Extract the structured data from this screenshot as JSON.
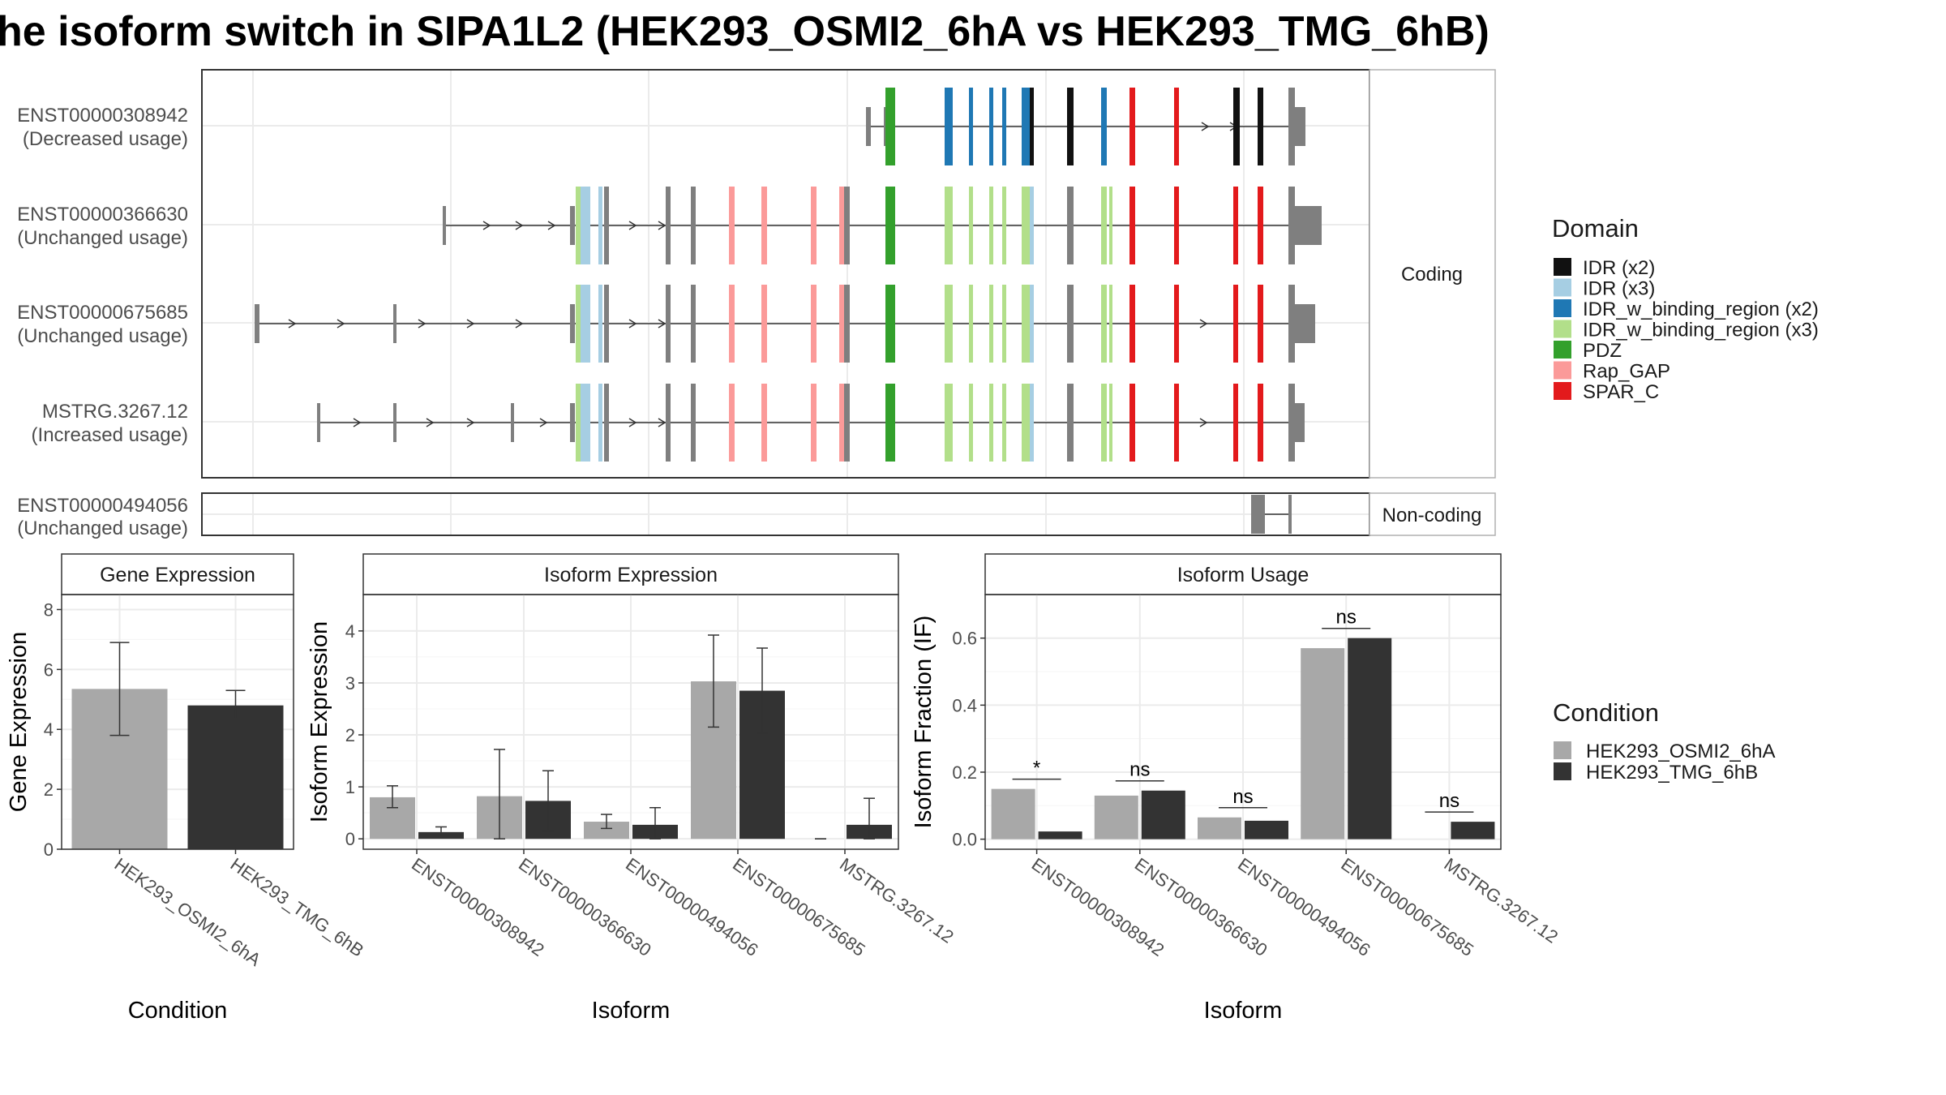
{
  "title": "he isoform switch in SIPA1L2 (HEK293_OSMI2_6hA vs HEK293_TMG_6hB)",
  "transcripts": {
    "facets": [
      "Coding",
      "Non-coding"
    ],
    "rows": [
      {
        "id": "ENST00000308942",
        "status": "(Decreased usage)"
      },
      {
        "id": "ENST00000366630",
        "status": "(Unchanged usage)"
      },
      {
        "id": "ENST00000675685",
        "status": "(Unchanged usage)"
      },
      {
        "id": "MSTRG.3267.12",
        "status": "(Increased usage)"
      },
      {
        "id": "ENST00000494056",
        "status": "(Unchanged usage)"
      }
    ]
  },
  "domain_legend": {
    "title": "Domain",
    "items": [
      {
        "label": "IDR (x2)",
        "color": "#111111"
      },
      {
        "label": "IDR (x3)",
        "color": "#a6cee3"
      },
      {
        "label": "IDR_w_binding_region (x2)",
        "color": "#1f78b4"
      },
      {
        "label": "IDR_w_binding_region (x3)",
        "color": "#b2df8a"
      },
      {
        "label": "PDZ",
        "color": "#33a02c"
      },
      {
        "label": "Rap_GAP",
        "color": "#fb9a99"
      },
      {
        "label": "SPAR_C",
        "color": "#e31a1c"
      }
    ]
  },
  "condition_legend": {
    "title": "Condition",
    "items": [
      {
        "label": "HEK293_OSMI2_6hA",
        "color": "#a8a8a8"
      },
      {
        "label": "HEK293_TMG_6hB",
        "color": "#333333"
      }
    ]
  },
  "chart_data": [
    {
      "type": "bar",
      "title": "Gene Expression",
      "xlabel": "Condition",
      "ylabel": "Gene Expression",
      "ylim": [
        0,
        8.5
      ],
      "yticks": [
        0,
        2,
        4,
        6,
        8
      ],
      "categories": [
        "HEK293_OSMI2_6hA",
        "HEK293_TMG_6hB"
      ],
      "values": [
        5.35,
        4.8
      ],
      "error_low": [
        3.8,
        4.35
      ],
      "error_high": [
        6.9,
        5.3
      ],
      "colors": [
        "#a8a8a8",
        "#333333"
      ]
    },
    {
      "type": "bar",
      "title": "Isoform Expression",
      "xlabel": "Isoform",
      "ylabel": "Isoform Expression",
      "ylim": [
        -0.2,
        4.7
      ],
      "yticks": [
        0,
        1,
        2,
        3,
        4
      ],
      "categories": [
        "ENST00000308942",
        "ENST00000366630",
        "ENST00000494056",
        "ENST00000675685",
        "MSTRG.3267.12"
      ],
      "series": [
        {
          "name": "HEK293_OSMI2_6hA",
          "values": [
            0.8,
            0.82,
            0.33,
            3.03,
            0.0
          ],
          "error_low": [
            0.6,
            0.0,
            0.2,
            2.15,
            0.0
          ],
          "error_high": [
            1.02,
            1.72,
            0.47,
            3.92,
            0.0
          ]
        },
        {
          "name": "HEK293_TMG_6hB",
          "values": [
            0.13,
            0.73,
            0.27,
            2.85,
            0.27
          ],
          "error_low": [
            0.03,
            0.15,
            0.0,
            2.03,
            0.0
          ],
          "error_high": [
            0.23,
            1.31,
            0.6,
            3.67,
            0.78
          ]
        }
      ]
    },
    {
      "type": "bar",
      "title": "Isoform Usage",
      "xlabel": "Isoform",
      "ylabel": "Isoform Fraction (IF)",
      "ylim": [
        -0.03,
        0.73
      ],
      "yticks": [
        0.0,
        0.2,
        0.4,
        0.6
      ],
      "categories": [
        "ENST00000308942",
        "ENST00000366630",
        "ENST00000494056",
        "ENST00000675685",
        "MSTRG.3267.12"
      ],
      "series": [
        {
          "name": "HEK293_OSMI2_6hA",
          "values": [
            0.15,
            0.13,
            0.065,
            0.57,
            0.0
          ]
        },
        {
          "name": "HEK293_TMG_6hB",
          "values": [
            0.023,
            0.145,
            0.055,
            0.6,
            0.052
          ]
        }
      ],
      "annotations": [
        "*",
        "ns",
        "ns",
        "ns",
        "ns"
      ]
    }
  ]
}
